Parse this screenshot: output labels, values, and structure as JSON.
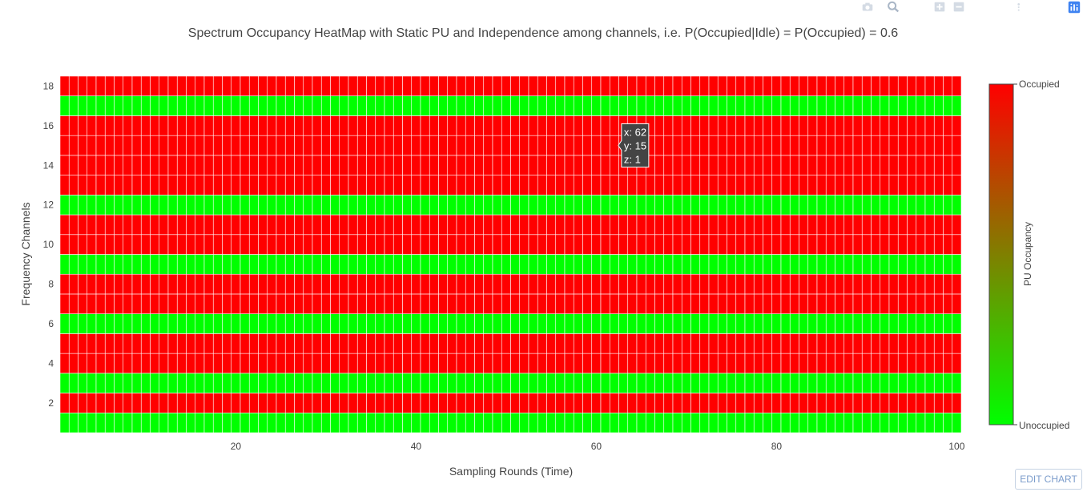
{
  "modebar": {
    "icons": [
      "camera-icon",
      "zoom-icon",
      "pan-icon",
      "zoom-in-icon",
      "zoom-out-icon",
      "autoscale-icon",
      "reset-axes-icon",
      "spike-lines-icon",
      "hover-closest-icon",
      "hover-compare-icon",
      "plotly-logo-icon"
    ],
    "colors": {
      "icon": "#d4dbe4",
      "icon_active": "#a9b6c6",
      "logo": "#3f83f1"
    }
  },
  "edit_button": {
    "label": "EDIT CHART"
  },
  "tooltip": {
    "x_text": "x: 62",
    "y_text": "y: 15",
    "z_text": "z: 1"
  },
  "chart_data": {
    "type": "heatmap",
    "title": "Spectrum Occupancy HeatMap with Static PU and Independence among channels, i.e. P(Occupied|Idle) = P(Occupied) = 0.6",
    "xlabel": "Sampling Rounds (Time)",
    "ylabel": "Frequency Channels",
    "x_range": [
      1,
      100
    ],
    "y_range": [
      1,
      18
    ],
    "xticks": [
      20,
      40,
      60,
      80,
      100
    ],
    "yticks": [
      2,
      4,
      6,
      8,
      10,
      12,
      14,
      16,
      18
    ],
    "channel_occupancy": {
      "1": 0,
      "2": 1,
      "3": 0,
      "4": 1,
      "5": 1,
      "6": 0,
      "7": 1,
      "8": 1,
      "9": 0,
      "10": 1,
      "11": 1,
      "12": 0,
      "13": 1,
      "14": 1,
      "15": 1,
      "16": 1,
      "17": 0,
      "18": 1
    },
    "static_over_time": true,
    "colorscale": {
      "low": "#00ff00",
      "high": "#ff0000"
    },
    "colorbar": {
      "title": "PU Occupancy",
      "tick_labels": {
        "low": "Unoccupied",
        "high": "Occupied"
      }
    },
    "hover_point": {
      "x": 62,
      "y": 15,
      "z": 1
    },
    "grid": false
  }
}
